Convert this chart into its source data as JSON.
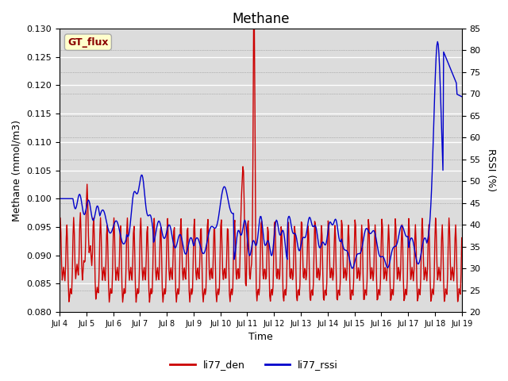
{
  "title": "Methane",
  "ylabel_left": "Methane (mmol/m3)",
  "ylabel_right": "RSSI (%)",
  "xlabel": "Time",
  "ylim_left": [
    0.08,
    0.13
  ],
  "ylim_right": [
    20,
    85
  ],
  "yticks_left": [
    0.08,
    0.085,
    0.09,
    0.095,
    0.1,
    0.105,
    0.11,
    0.115,
    0.12,
    0.125,
    0.13
  ],
  "yticks_right": [
    20,
    25,
    30,
    35,
    40,
    45,
    50,
    55,
    60,
    65,
    70,
    75,
    80,
    85
  ],
  "xtick_labels": [
    "Jul 4",
    "Jul 5",
    "Jul 6",
    "Jul 7",
    "Jul 8",
    "Jul 9",
    "Jul 10",
    "Jul 11",
    "Jul 12",
    "Jul 13",
    "Jul 14",
    "Jul 15",
    "Jul 16",
    "Jul 17",
    "Jul 18",
    "Jul 19"
  ],
  "color_red": "#cc0000",
  "color_blue": "#0000cc",
  "legend_red": "li77_den",
  "legend_blue": "li77_rssi",
  "gt_flux_label": "GT_flux",
  "gt_flux_bg": "#ffffcc",
  "gt_flux_border": "#aaaaaa",
  "background_color": "#dcdcdc",
  "line_width": 1.0
}
